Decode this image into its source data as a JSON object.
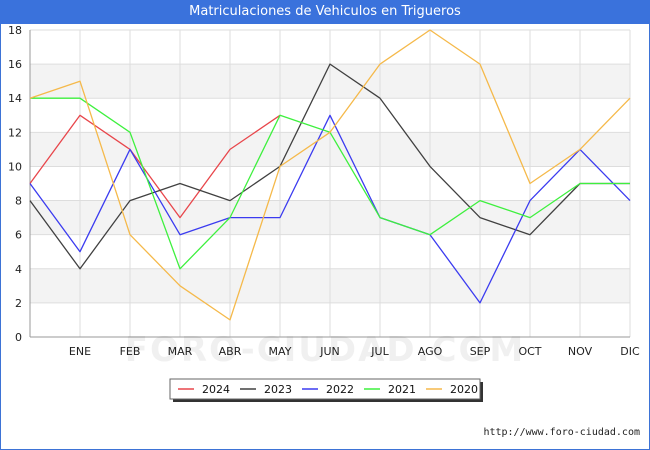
{
  "header": {
    "title": "Matriculaciones de Vehiculos en Trigueros"
  },
  "footer": {
    "credit": "http://www.foro-ciudad.com",
    "watermark": "FORO-CIUDAD.COM"
  },
  "chart_data": {
    "type": "line",
    "title": "Matriculaciones de Vehiculos en Trigueros",
    "xlabel": "",
    "ylabel": "",
    "x": [
      "",
      "ENE",
      "FEB",
      "MAR",
      "ABR",
      "MAY",
      "JUN",
      "JUL",
      "AGO",
      "SEP",
      "OCT",
      "NOV",
      "DIC"
    ],
    "ylim": [
      0,
      18
    ],
    "yticks": [
      0,
      2,
      4,
      6,
      8,
      10,
      12,
      14,
      16,
      18
    ],
    "grid": true,
    "legend_position": "bottom",
    "series": [
      {
        "name": "2024",
        "color": "#e8464b",
        "values": [
          9,
          13,
          11,
          7,
          11,
          13,
          null,
          null,
          null,
          null,
          null,
          null,
          null
        ]
      },
      {
        "name": "2023",
        "color": "#404040",
        "values": [
          8,
          4,
          8,
          9,
          8,
          10,
          16,
          14,
          10,
          7,
          6,
          9,
          9
        ]
      },
      {
        "name": "2022",
        "color": "#3b3bf0",
        "values": [
          9,
          5,
          11,
          6,
          7,
          7,
          13,
          7,
          6,
          2,
          8,
          11,
          8
        ]
      },
      {
        "name": "2021",
        "color": "#3ef03e",
        "values": [
          14,
          14,
          12,
          4,
          7,
          13,
          12,
          7,
          6,
          8,
          7,
          9,
          9
        ]
      },
      {
        "name": "2020",
        "color": "#f5b94a",
        "values": [
          14,
          15,
          6,
          3,
          1,
          10,
          12,
          16,
          18,
          16,
          9,
          11,
          14
        ]
      }
    ]
  }
}
